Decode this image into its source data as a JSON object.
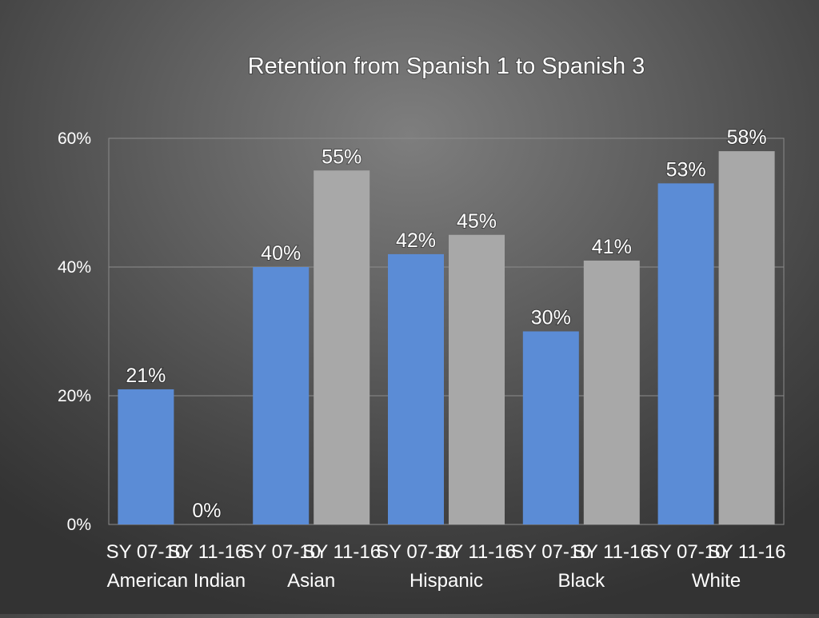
{
  "chart_data": {
    "type": "bar",
    "title": "Retention from Spanish 1 to Spanish 3",
    "categories": [
      "American Indian",
      "Asian",
      "Hispanic",
      "Black",
      "White"
    ],
    "series": [
      {
        "name": "SY 07-10",
        "color": "#5b8cd6",
        "values": [
          21,
          40,
          42,
          30,
          53
        ],
        "labels": [
          "21%",
          "40%",
          "42%",
          "30%",
          "53%"
        ]
      },
      {
        "name": "SY 11-16",
        "color": "#a8a8a8",
        "values": [
          0,
          55,
          45,
          41,
          58
        ],
        "labels": [
          "0%",
          "55%",
          "45%",
          "41%",
          "58%"
        ]
      }
    ],
    "ylim": [
      0,
      60
    ],
    "yticks": [
      0,
      20,
      40,
      60
    ],
    "ytick_labels": [
      "0%",
      "20%",
      "40%",
      "60%"
    ],
    "grid": true,
    "legend": "none"
  }
}
